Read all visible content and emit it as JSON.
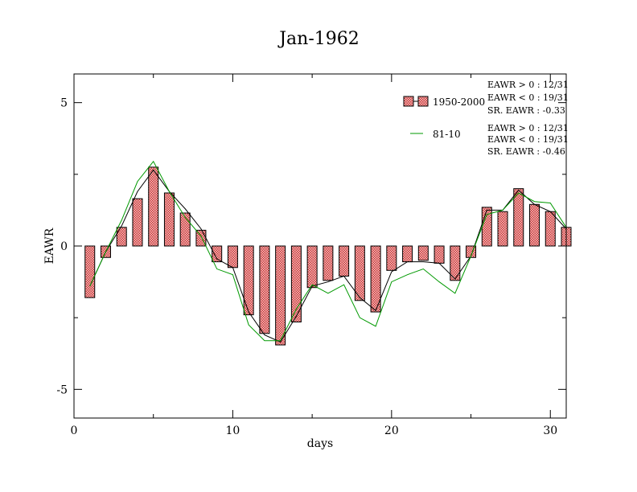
{
  "chart_data": {
    "type": "bar",
    "title": "Jan-1962",
    "xlabel": "days",
    "ylabel": "EAWR",
    "xlim": [
      0,
      31
    ],
    "ylim": [
      -6,
      6
    ],
    "x_ticks": [
      0,
      10,
      20,
      30
    ],
    "y_ticks": [
      -5,
      0,
      5
    ],
    "x": [
      1,
      2,
      3,
      4,
      5,
      6,
      7,
      8,
      9,
      10,
      11,
      12,
      13,
      14,
      15,
      16,
      17,
      18,
      19,
      20,
      21,
      22,
      23,
      24,
      25,
      26,
      27,
      28,
      29,
      30,
      31
    ],
    "series": [
      {
        "name": "1950-2000",
        "kind": "bar",
        "fill": "#e8a0a0",
        "values": [
          -1.8,
          -0.4,
          0.65,
          1.65,
          2.75,
          1.85,
          1.15,
          0.55,
          -0.55,
          -0.75,
          -2.4,
          -3.05,
          -3.45,
          -2.65,
          -1.45,
          -1.2,
          -1.05,
          -1.9,
          -2.3,
          -0.85,
          -0.55,
          -0.5,
          -0.6,
          -1.2,
          -0.4,
          1.35,
          1.2,
          2.0,
          1.45,
          1.2,
          0.65
        ]
      },
      {
        "name": "",
        "kind": "line",
        "color": "#000000",
        "values": [
          -1.4,
          -0.2,
          0.7,
          1.9,
          2.65,
          1.9,
          1.3,
          0.6,
          -0.45,
          -0.75,
          -2.3,
          -3.1,
          -3.35,
          -2.45,
          -1.4,
          -1.25,
          -1.05,
          -1.8,
          -2.25,
          -0.9,
          -0.55,
          -0.55,
          -0.6,
          -1.15,
          -0.35,
          1.25,
          1.25,
          1.95,
          1.45,
          1.2,
          0.6
        ]
      },
      {
        "name": "81-10",
        "kind": "line",
        "color": "#009900",
        "values": [
          -1.4,
          -0.2,
          0.9,
          2.25,
          2.95,
          1.9,
          1.0,
          0.35,
          -0.8,
          -1.0,
          -2.75,
          -3.3,
          -3.3,
          -2.2,
          -1.35,
          -1.65,
          -1.35,
          -2.5,
          -2.8,
          -1.25,
          -1.0,
          -0.8,
          -1.25,
          -1.65,
          -0.35,
          1.1,
          1.25,
          1.85,
          1.55,
          1.5,
          0.65
        ]
      }
    ],
    "legend": [
      {
        "label": "1950-2000",
        "stats": [
          "EAWR > 0 : 12/31",
          "EAWR < 0 : 19/31",
          "SR. EAWR : -0.33"
        ]
      },
      {
        "label": "81-10",
        "stats": [
          "EAWR > 0 : 12/31",
          "EAWR < 0 : 19/31",
          "SR. EAWR : -0.46"
        ]
      }
    ],
    "legend_position": "top-right",
    "grid": false
  }
}
